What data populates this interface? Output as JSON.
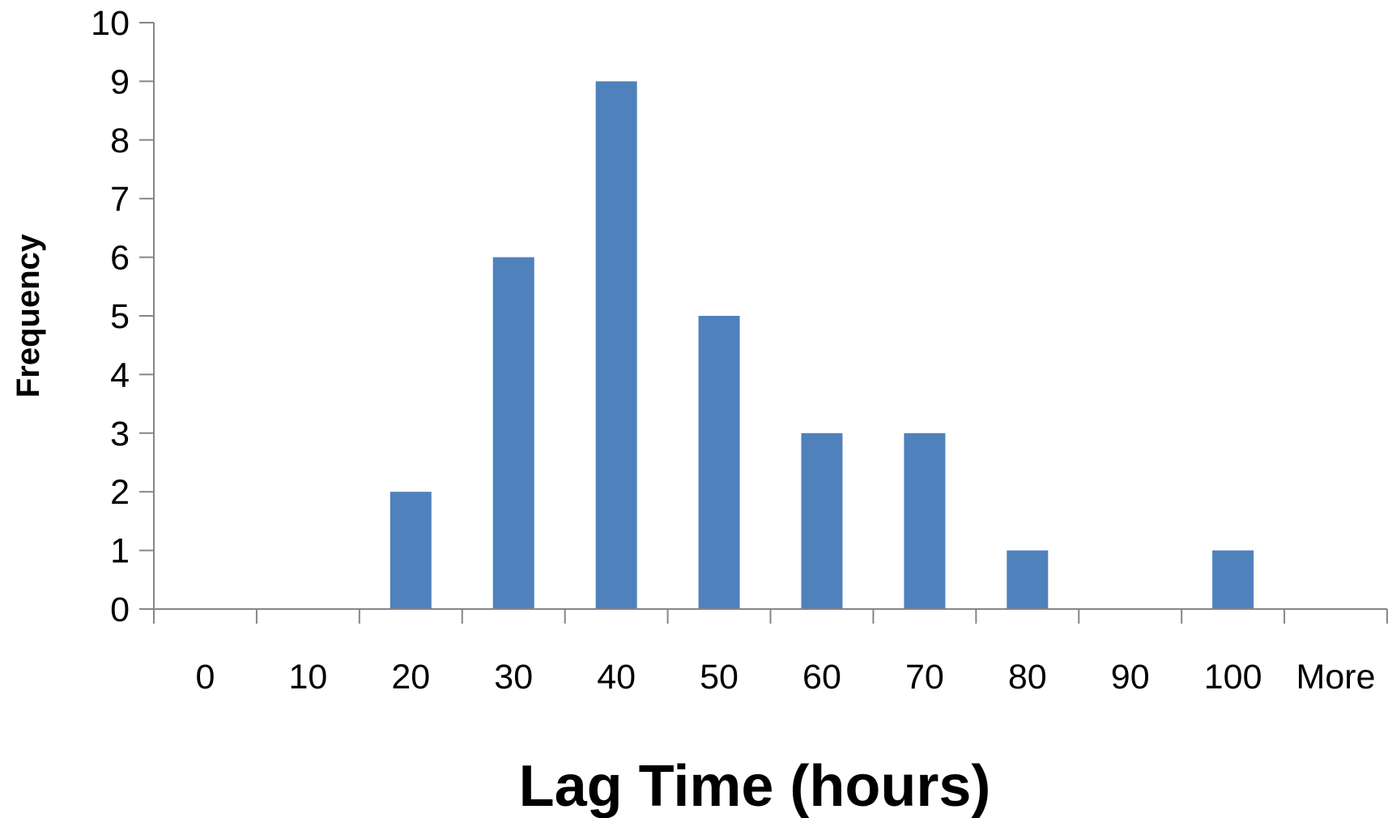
{
  "chart_data": {
    "type": "bar",
    "title": "",
    "xlabel": "Lag Time (hours)",
    "ylabel": "Frequency",
    "categories": [
      "0",
      "10",
      "20",
      "30",
      "40",
      "50",
      "60",
      "70",
      "80",
      "90",
      "100",
      "More"
    ],
    "values": [
      0,
      0,
      2,
      6,
      9,
      5,
      3,
      3,
      1,
      0,
      1,
      0
    ],
    "ylim": [
      0,
      10
    ],
    "yticks": [
      0,
      1,
      2,
      3,
      4,
      5,
      6,
      7,
      8,
      9,
      10
    ],
    "grid": false,
    "legend": "none",
    "bar_color": "#4F81BD",
    "axis_color": "#868686"
  }
}
